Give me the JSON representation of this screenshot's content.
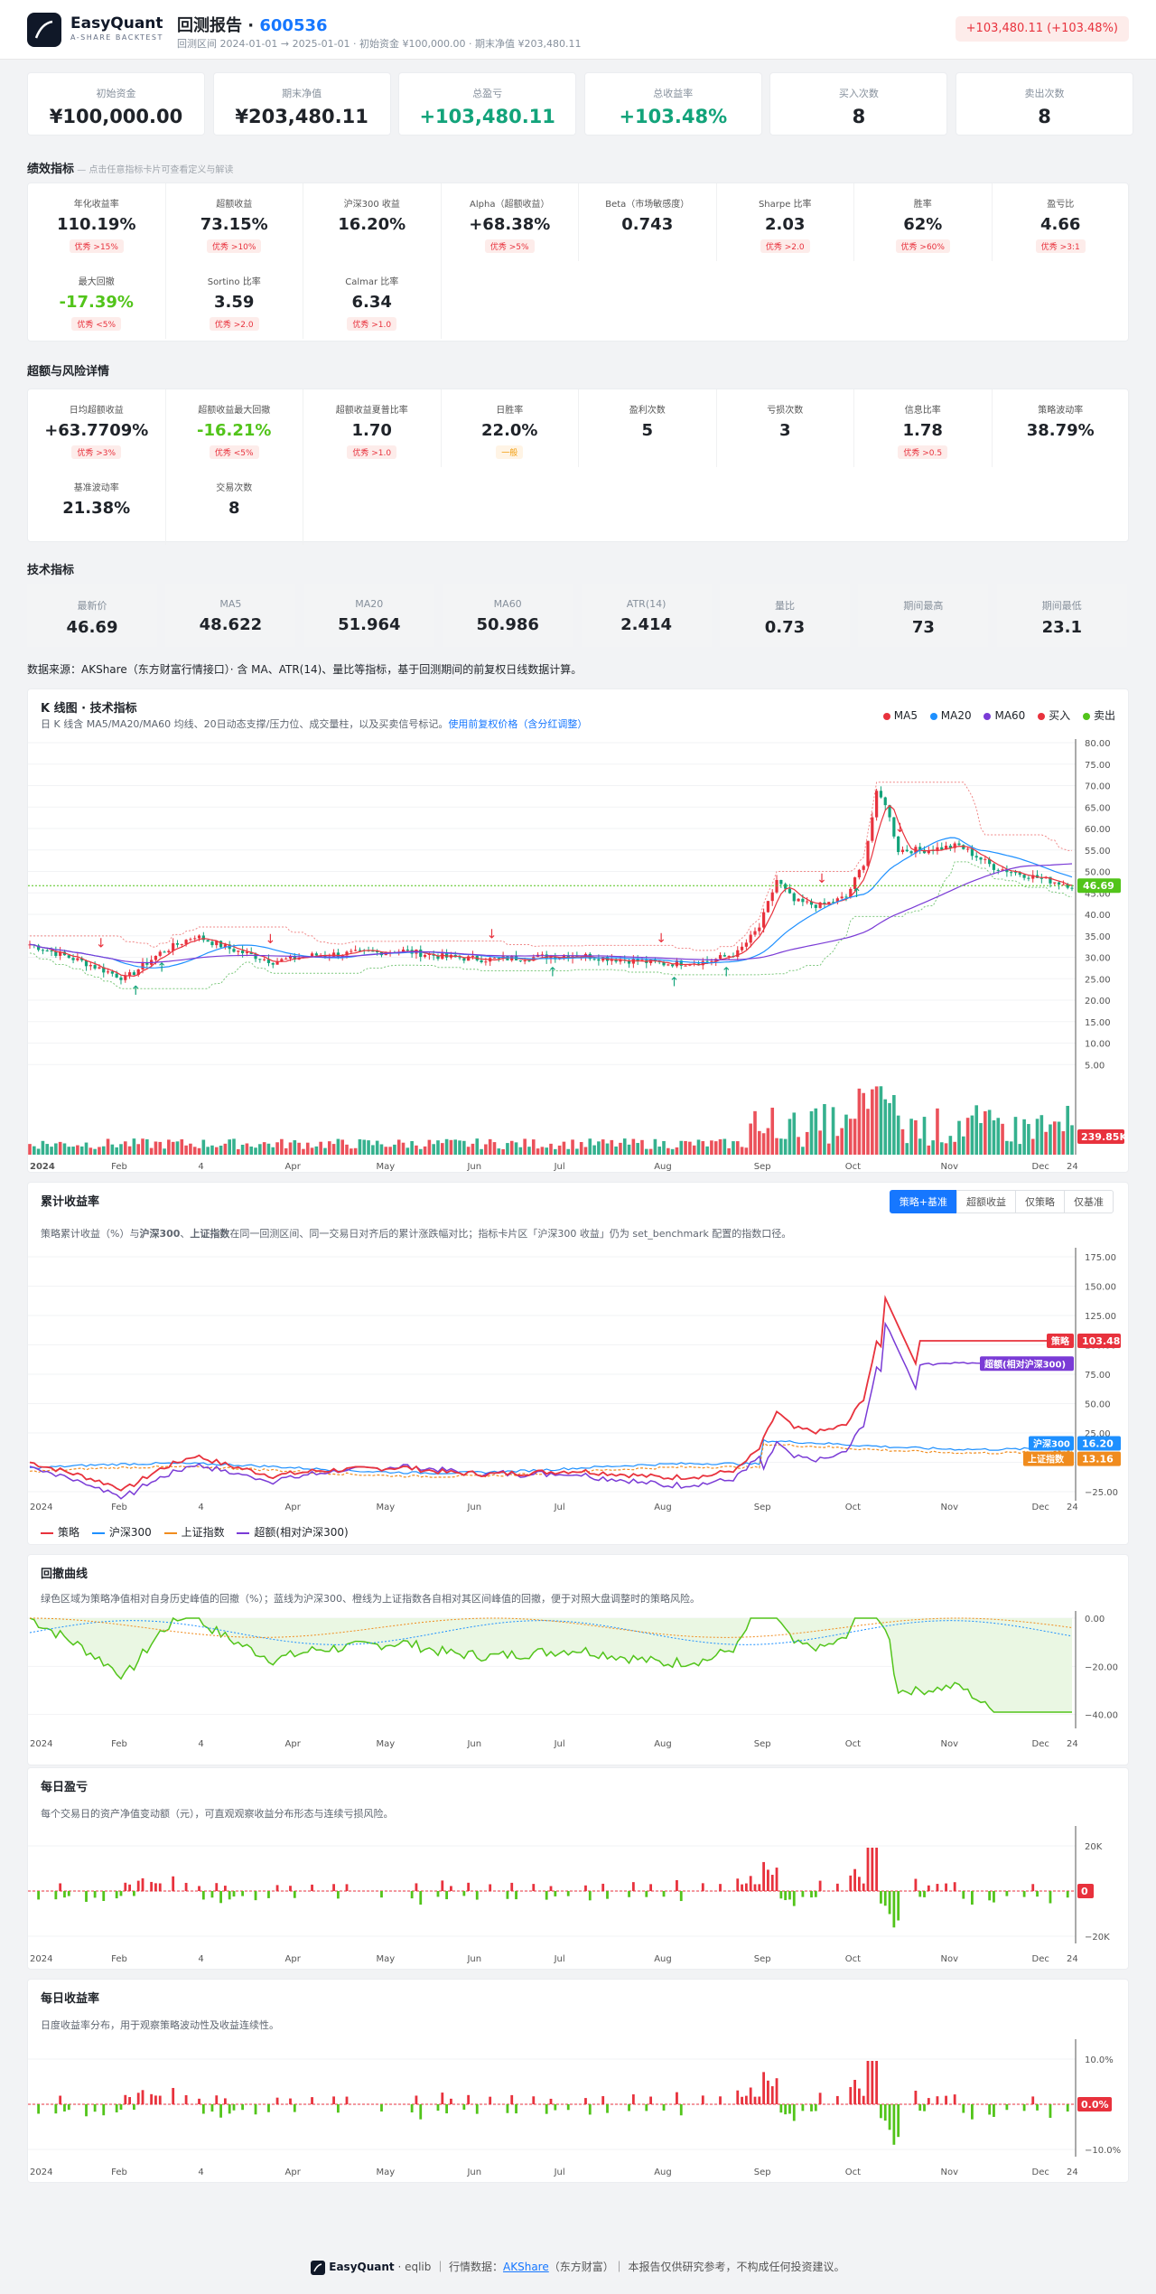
{
  "header": {
    "brand": "EasyQuant",
    "brand_sub": "A-SHARE BACKTEST",
    "title": "回测报告 · ",
    "code": "600536",
    "meta": "回测区间 2024-01-01 → 2025-01-01 · 初始资金 ¥100,000.00 · 期末净值 ¥203,480.11",
    "pnl_badge": "+103,480.11 (+103.48%)"
  },
  "summary": [
    {
      "label": "初始资金",
      "value": "¥100,000.00",
      "color": "dark"
    },
    {
      "label": "期末净值",
      "value": "¥203,480.11",
      "color": "dark"
    },
    {
      "label": "总盈亏",
      "value": "+103,480.11",
      "color": "green"
    },
    {
      "label": "总收益率",
      "value": "+103.48%",
      "color": "green"
    },
    {
      "label": "买入次数",
      "value": "8",
      "color": "dark"
    },
    {
      "label": "卖出次数",
      "value": "8",
      "color": "dark"
    }
  ],
  "perf": {
    "title": "绩效指标",
    "hint": " — 点击任意指标卡片可查看定义与解读",
    "items": [
      {
        "label": "年化收益率",
        "value": "110.19%",
        "badge": "优秀 >15%",
        "color": "dark"
      },
      {
        "label": "超额收益",
        "value": "73.15%",
        "badge": "优秀 >10%",
        "color": "dark"
      },
      {
        "label": "沪深300 收益",
        "value": "16.20%",
        "badge": "",
        "color": "dark"
      },
      {
        "label": "Alpha（超额收益）",
        "value": "+68.38%",
        "badge": "优秀 >5%",
        "color": "dark"
      },
      {
        "label": "Beta（市场敏感度）",
        "value": "0.743",
        "badge": "",
        "color": "dark"
      },
      {
        "label": "Sharpe 比率",
        "value": "2.03",
        "badge": "优秀 >2.0",
        "color": "dark"
      },
      {
        "label": "胜率",
        "value": "62%",
        "badge": "优秀 >60%",
        "color": "dark"
      },
      {
        "label": "盈亏比",
        "value": "4.66",
        "badge": "优秀 >3:1",
        "color": "dark"
      },
      {
        "label": "最大回撤",
        "value": "-17.39%",
        "badge": "优秀 <5%",
        "color": "lgreen"
      },
      {
        "label": "Sortino 比率",
        "value": "3.59",
        "badge": "优秀 >2.0",
        "color": "dark"
      },
      {
        "label": "Calmar 比率",
        "value": "6.34",
        "badge": "优秀 >1.0",
        "color": "dark"
      }
    ]
  },
  "risk": {
    "title": "超额与风险详情",
    "items": [
      {
        "label": "日均超额收益",
        "value": "+63.7709%",
        "badge": "优秀 >3%",
        "warn": false,
        "color": "dark"
      },
      {
        "label": "超额收益最大回撤",
        "value": "-16.21%",
        "badge": "优秀 <5%",
        "warn": false,
        "color": "lgreen"
      },
      {
        "label": "超额收益夏普比率",
        "value": "1.70",
        "badge": "优秀 >1.0",
        "warn": false,
        "color": "dark"
      },
      {
        "label": "日胜率",
        "value": "22.0%",
        "badge": "一般",
        "warn": true,
        "color": "dark"
      },
      {
        "label": "盈利次数",
        "value": "5",
        "badge": "",
        "warn": false,
        "color": "dark"
      },
      {
        "label": "亏损次数",
        "value": "3",
        "badge": "",
        "warn": false,
        "color": "dark"
      },
      {
        "label": "信息比率",
        "value": "1.78",
        "badge": "优秀 >0.5",
        "warn": false,
        "color": "dark"
      },
      {
        "label": "策略波动率",
        "value": "38.79%",
        "badge": "",
        "warn": false,
        "color": "dark"
      },
      {
        "label": "基准波动率",
        "value": "21.38%",
        "badge": "",
        "warn": false,
        "color": "dark"
      },
      {
        "label": "交易次数",
        "value": "8",
        "badge": "",
        "warn": false,
        "color": "dark"
      }
    ]
  },
  "tech": {
    "title": "技术指标",
    "items": [
      {
        "label": "最新价",
        "value": "46.69"
      },
      {
        "label": "MA5",
        "value": "48.622"
      },
      {
        "label": "MA20",
        "value": "51.964"
      },
      {
        "label": "MA60",
        "value": "50.986"
      },
      {
        "label": "ATR(14)",
        "value": "2.414"
      },
      {
        "label": "量比",
        "value": "0.73"
      },
      {
        "label": "期间最高",
        "value": "73"
      },
      {
        "label": "期间最低",
        "value": "23.1"
      }
    ]
  },
  "source": "数据来源：AKShare（东方财富行情接口）· 含 MA、ATR(14)、量比等指标，基于回测期间的前复权日线数据计算。",
  "kline": {
    "title": "K 线图 · 技术指标",
    "desc": "日 K 线含 MA5/MA20/MA60 均线、20日动态支撑/压力位、成交量柱，以及买卖信号标记。",
    "desc_link": "使用前复权价格（含分红调整）",
    "legend": [
      "MA5",
      "MA20",
      "MA60",
      "买入",
      "卖出"
    ],
    "last_price": "46.69",
    "last_vol": "239.85K",
    "yticks": [
      "80.00",
      "75.00",
      "70.00",
      "65.00",
      "60.00",
      "55.00",
      "50.00",
      "45.00",
      "40.00",
      "35.00",
      "30.00",
      "25.00",
      "20.00",
      "15.00",
      "10.00",
      "5.00"
    ],
    "xticks": [
      "2024",
      "Feb",
      "4",
      "Apr",
      "May",
      "Jun",
      "Jul",
      "Aug",
      "Sep",
      "Oct",
      "Nov",
      "Dec",
      "24"
    ]
  },
  "cum": {
    "title": "累计收益率",
    "desc_pre": "策略累计收益（%）与",
    "desc_b1": "沪深300",
    "desc_mid": "、",
    "desc_b2": "上证指数",
    "desc_post": "在同一回测区间、同一交易日对齐后的累计涨跌幅对比；指标卡片区「沪深300 收益」仍为 set_benchmark 配置的指数口径。",
    "tabs": [
      "策略+基准",
      "超额收益",
      "仅策略",
      "仅基准"
    ],
    "yticks": [
      "175.00",
      "150.00",
      "125.00",
      "100.00",
      "75.00",
      "50.00",
      "25.00",
      "0.00",
      "−25.00"
    ],
    "legend": [
      "策略",
      "沪深300",
      "上证指数",
      "超额(相对沪深300)"
    ],
    "tags": {
      "strategy": "103.48",
      "excess": "超额(相对沪深300)",
      "hs300": "16.20",
      "sh": "13.16",
      "strategy_name": "策略",
      "hs300_name": "沪深300",
      "sh_name": "上证指数"
    }
  },
  "dd": {
    "title": "回撤曲线",
    "desc": "绿色区域为策略净值相对自身历史峰值的回撤（%）；蓝线为沪深300、橙线为上证指数各自相对其区间峰值的回撤，便于对照大盘调整时的策略风险。",
    "yticks": [
      "0.00",
      "−20.00",
      "−40.00"
    ]
  },
  "daily_pnl": {
    "title": "每日盈亏",
    "desc": "每个交易日的资产净值变动额（元），可直观观察收益分布形态与连续亏损风险。",
    "yticks": [
      "20K",
      "0",
      "−20K"
    ],
    "zero_tag": "0"
  },
  "daily_ret": {
    "title": "每日收益率",
    "desc": "日度收益率分布，用于观察策略波动性及收益连续性。",
    "yticks": [
      "10.0%",
      "0.0%",
      "−10.0%"
    ],
    "zero_tag": "0.0%"
  },
  "footer": {
    "brand": "EasyQuant",
    "sep1": " · eqlib ｜ 行情数据：",
    "link": "AKShare",
    "tail": "（东方财富）｜ 本报告仅供研究参考，不构成任何投资建议。"
  },
  "colors": {
    "up": "#e8323d",
    "down": "#12a37a",
    "ma5": "#e8323d",
    "ma20": "#1e90ff",
    "ma60": "#7a3bd6",
    "strategy": "#e8323d",
    "hs300": "#1e90ff",
    "sh": "#f08c1e",
    "excess": "#7a3bd6",
    "dd": "#52c41a"
  }
}
